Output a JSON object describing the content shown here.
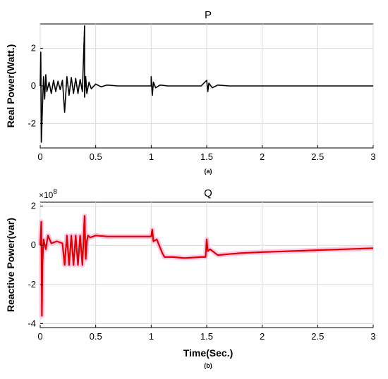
{
  "chart_data": [
    {
      "type": "line",
      "title": "P",
      "ylabel": "Real Power(Watt.)",
      "xlabel": "",
      "caption": "(a)",
      "xlim": [
        0,
        3
      ],
      "ylim": [
        -3.3,
        3.3
      ],
      "xticks": [
        0,
        0.5,
        1,
        1.5,
        2,
        2.5,
        3
      ],
      "xtick_labels": [
        "0",
        "0.5",
        "1",
        "1.5",
        "2",
        "2.5",
        "3"
      ],
      "yticks": [
        -2,
        0,
        2
      ],
      "ytick_labels": [
        "-2",
        "0",
        "2"
      ],
      "grid": true,
      "series": [
        {
          "color": "#000000",
          "x": [
            0,
            0.005,
            0.01,
            0.02,
            0.03,
            0.04,
            0.05,
            0.06,
            0.08,
            0.1,
            0.12,
            0.14,
            0.16,
            0.18,
            0.2,
            0.22,
            0.24,
            0.26,
            0.28,
            0.3,
            0.32,
            0.34,
            0.36,
            0.38,
            0.4,
            0.4,
            0.41,
            0.42,
            0.44,
            0.46,
            0.5,
            0.55,
            0.6,
            0.7,
            0.8,
            0.9,
            1.0,
            1.0,
            1.01,
            1.02,
            1.04,
            1.08,
            1.15,
            1.3,
            1.45,
            1.5,
            1.51,
            1.52,
            1.55,
            1.6,
            1.7,
            2.0,
            2.5,
            3.0
          ],
          "y": [
            0,
            1.8,
            -3.0,
            -1.2,
            0.5,
            -0.7,
            0.6,
            -0.3,
            0.2,
            -0.4,
            0.3,
            -0.3,
            0.25,
            -0.2,
            0.3,
            -1.4,
            0.5,
            -0.5,
            0.45,
            -0.4,
            0.4,
            -0.4,
            0.35,
            -0.3,
            3.2,
            -0.6,
            0.5,
            -0.4,
            0.2,
            -0.15,
            0.1,
            -0.05,
            0.05,
            0.0,
            0.0,
            0.0,
            0.0,
            0.5,
            -0.5,
            0.2,
            -0.1,
            0.05,
            0.0,
            0.0,
            0.0,
            0.3,
            -0.3,
            0.15,
            -0.1,
            0.05,
            0.0,
            0.0,
            0.0,
            0.0
          ]
        }
      ]
    },
    {
      "type": "line",
      "title": "Q",
      "ylabel": "Reactive Power(var)",
      "xlabel": "Time(Sec.)",
      "caption": "(b)",
      "y_multiplier": "×10",
      "y_exponent": "8",
      "xlim": [
        0,
        3
      ],
      "ylim": [
        -4.2,
        2.2
      ],
      "xticks": [
        0,
        0.5,
        1,
        1.5,
        2,
        2.5,
        3
      ],
      "xtick_labels": [
        "0",
        "0.5",
        "1",
        "1.5",
        "2",
        "2.5",
        "3"
      ],
      "yticks": [
        -4,
        -2,
        0,
        2
      ],
      "ytick_labels": [
        "-4",
        "-2",
        "0",
        "2"
      ],
      "grid": true,
      "series": [
        {
          "color": "#e00000",
          "x": [
            0,
            0.01,
            0.015,
            0.02,
            0.03,
            0.05,
            0.07,
            0.1,
            0.15,
            0.2,
            0.22,
            0.24,
            0.26,
            0.28,
            0.3,
            0.32,
            0.34,
            0.36,
            0.38,
            0.4,
            0.41,
            0.42,
            0.43,
            0.45,
            0.5,
            0.6,
            0.8,
            1.0,
            1.01,
            1.02,
            1.05,
            1.1,
            1.12,
            1.2,
            1.3,
            1.45,
            1.49,
            1.5,
            1.51,
            1.53,
            1.6,
            1.8,
            2.0,
            2.5,
            3.0
          ],
          "y": [
            0,
            1.2,
            -3.6,
            -1.0,
            0.3,
            -0.2,
            0.5,
            0.1,
            0.2,
            0.1,
            -1.0,
            0.5,
            -1.0,
            0.5,
            -1.0,
            0.5,
            -1.0,
            0.5,
            -1.0,
            1.5,
            -0.7,
            0.2,
            0.5,
            0.4,
            0.5,
            0.45,
            0.45,
            0.45,
            0.8,
            0.2,
            0.3,
            -0.4,
            -0.6,
            -0.6,
            -0.65,
            -0.6,
            -0.6,
            0.3,
            -0.3,
            -0.2,
            -0.5,
            -0.4,
            -0.35,
            -0.25,
            -0.15
          ]
        }
      ]
    }
  ]
}
